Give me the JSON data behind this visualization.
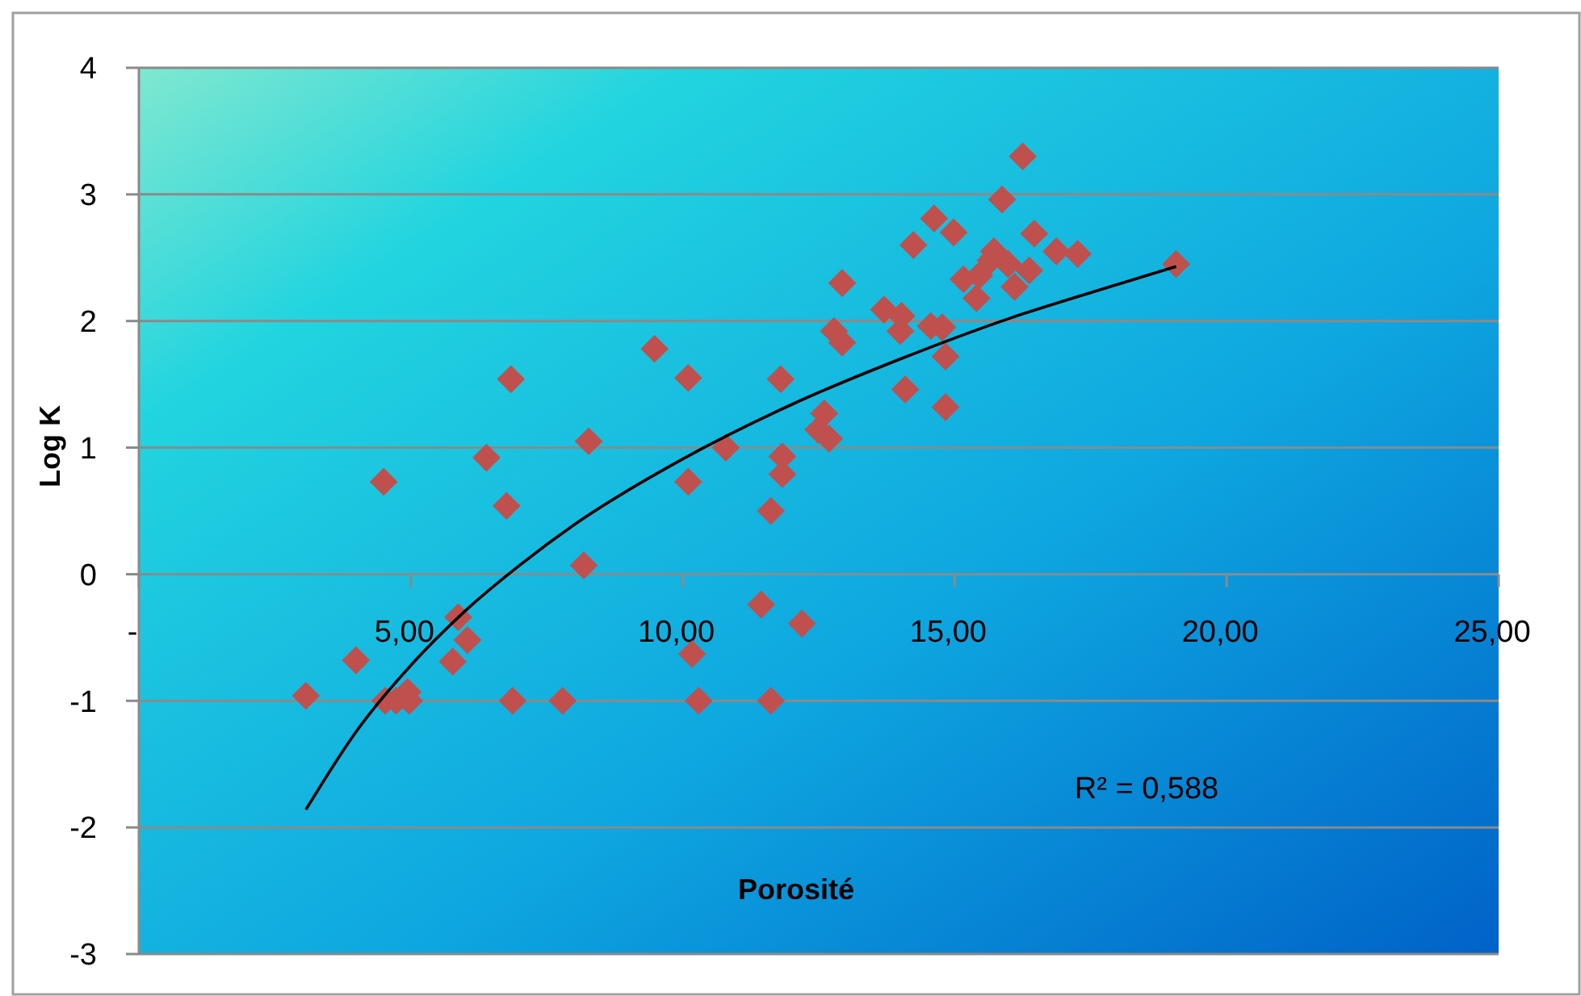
{
  "chart_data": {
    "type": "scatter",
    "xlabel": "Porosité",
    "ylabel": "Log K",
    "xlim": [
      0,
      25
    ],
    "ylim": [
      -3,
      4
    ],
    "xticks": [
      {
        "value": 0,
        "label": "-"
      },
      {
        "value": 5,
        "label": "5,00"
      },
      {
        "value": 10,
        "label": "10,00"
      },
      {
        "value": 15,
        "label": "15,00"
      },
      {
        "value": 20,
        "label": "20,00"
      },
      {
        "value": 25,
        "label": "25,00"
      }
    ],
    "yticks": [
      -3,
      -2,
      -1,
      0,
      1,
      2,
      3,
      4
    ],
    "grid": "y",
    "marker": "diamond",
    "series": [
      {
        "color": "#c0504d",
        "x": [
          3.07,
          3.99,
          4.5,
          4.53,
          4.73,
          4.94,
          4.97,
          5.87,
          6.04,
          5.77,
          6.39,
          6.76,
          6.84,
          6.87,
          7.79,
          8.18,
          8.27,
          9.48,
          10.1,
          10.1,
          10.17,
          10.29,
          10.79,
          11.44,
          11.62,
          11.62,
          11.8,
          11.83,
          11.83,
          12.19,
          12.49,
          12.6,
          12.69,
          12.78,
          12.93,
          12.93,
          13.7,
          14.0,
          14.02,
          14.09,
          14.24,
          14.56,
          14.62,
          14.77,
          14.83,
          14.83,
          14.98,
          15.16,
          15.4,
          15.45,
          15.66,
          15.72,
          15.87,
          15.98,
          16.1,
          16.25,
          16.37,
          16.46,
          16.87,
          17.26,
          19.07
        ],
        "values": [
          -0.96,
          -0.68,
          0.73,
          -1.0,
          -1.0,
          -0.93,
          -1.0,
          -0.34,
          -0.52,
          -0.69,
          0.92,
          0.54,
          1.54,
          -1.0,
          -1.0,
          0.07,
          1.05,
          1.78,
          1.55,
          0.73,
          -0.63,
          -1.0,
          1.0,
          -0.24,
          0.5,
          -1.0,
          1.54,
          0.93,
          0.79,
          -0.39,
          1.14,
          1.27,
          1.07,
          1.92,
          1.83,
          2.3,
          2.09,
          1.92,
          2.04,
          1.46,
          2.6,
          1.96,
          2.81,
          1.95,
          1.72,
          1.32,
          2.7,
          2.33,
          2.18,
          2.36,
          2.48,
          2.55,
          2.96,
          2.45,
          2.27,
          3.3,
          2.4,
          2.69,
          2.55,
          2.53,
          2.45
        ]
      },
      {
        "type": "line",
        "color": "#000000",
        "marker": "none",
        "x": [
          3.07,
          4,
          5,
          6,
          7,
          8,
          10,
          12,
          14,
          16,
          18,
          19.07
        ],
        "values": [
          -1.86,
          -1.24,
          -0.72,
          -0.29,
          0.07,
          0.39,
          0.91,
          1.34,
          1.7,
          2.02,
          2.29,
          2.43
        ]
      }
    ],
    "annotations": [
      "R² = 0,588"
    ]
  }
}
